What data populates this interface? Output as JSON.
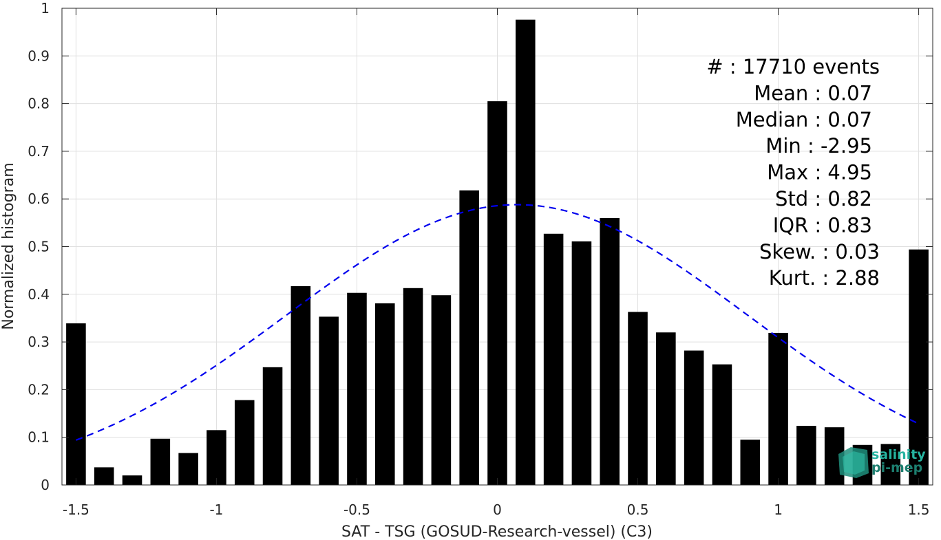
{
  "chart_data": {
    "type": "bar",
    "xlabel": "SAT - TSG (GOSUD-Research-vessel) (C3)",
    "ylabel": "Normalized histogram",
    "xlim": [
      -1.55,
      1.55
    ],
    "ylim": [
      0,
      1
    ],
    "xticks": [
      -1.5,
      -1,
      -0.5,
      0,
      0.5,
      1,
      1.5
    ],
    "xtick_labels": [
      "-1.5",
      "-1",
      "-0.5",
      "0",
      "0.5",
      "1",
      "1.5"
    ],
    "yticks": [
      0,
      0.1,
      0.2,
      0.3,
      0.4,
      0.5,
      0.6,
      0.7,
      0.8,
      0.9,
      1
    ],
    "ytick_labels": [
      "0",
      "0.1",
      "0.2",
      "0.3",
      "0.4",
      "0.5",
      "0.6",
      "0.7",
      "0.8",
      "0.9",
      "1"
    ],
    "grid": true,
    "bar_width": 0.07,
    "bar_color": "#000000",
    "series": [
      {
        "x": [
          -1.5,
          -1.4,
          -1.3,
          -1.2,
          -1.1,
          -1.0,
          -0.9,
          -0.8,
          -0.7,
          -0.6,
          -0.5,
          -0.4,
          -0.3,
          -0.2,
          -0.1,
          0.0,
          0.1,
          0.2,
          0.3,
          0.4,
          0.5,
          0.6,
          0.7,
          0.8,
          0.9,
          1.0,
          1.1,
          1.2,
          1.3,
          1.4,
          1.5
        ],
        "values": [
          0.339,
          0.037,
          0.02,
          0.097,
          0.067,
          0.115,
          0.178,
          0.247,
          0.417,
          0.353,
          0.403,
          0.381,
          0.413,
          0.398,
          0.618,
          0.805,
          0.976,
          0.527,
          0.511,
          0.56,
          0.363,
          0.32,
          0.282,
          0.253,
          0.095,
          0.319,
          0.124,
          0.121,
          0.084,
          0.086,
          0.494
        ]
      }
    ],
    "fit_curve": {
      "style": "dashed",
      "color": "#0000ee",
      "mean": 0.07,
      "std": 0.82,
      "peak": 0.588,
      "x_range": [
        -1.5,
        1.5
      ]
    },
    "stats": [
      "#  : 17710 events",
      "Mean : 0.07",
      "Median : 0.07",
      "Min : -2.95",
      "Max : 4.95",
      "Std : 0.82",
      "IQR : 0.83",
      "Skew. : 0.03",
      "Kurt. : 2.88"
    ],
    "logo": {
      "line1": "salinity",
      "line2": "pi-mep"
    }
  }
}
